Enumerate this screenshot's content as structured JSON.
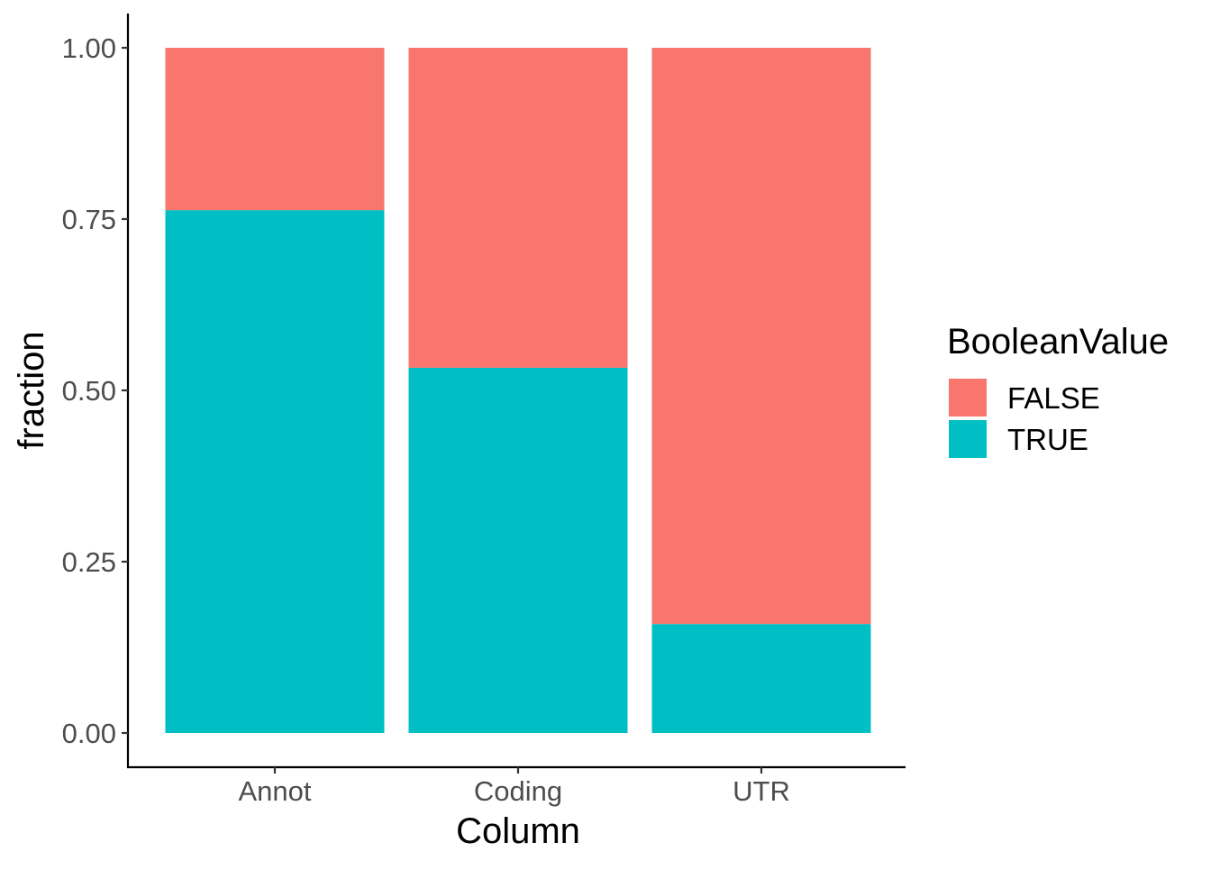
{
  "chart_data": {
    "type": "bar",
    "stacked": true,
    "title": "",
    "xlabel": "Column",
    "ylabel": "fraction",
    "categories": [
      "Annot",
      "Coding",
      "UTR"
    ],
    "ylim": [
      0,
      1
    ],
    "yticks": [
      0,
      0.25,
      0.5,
      0.75,
      1
    ],
    "ytick_labels": [
      "0.00",
      "0.25",
      "0.50",
      "0.75",
      "1.00"
    ],
    "series": [
      {
        "name": "TRUE",
        "color": "#00BFC4",
        "values": [
          0.763,
          0.533,
          0.159
        ]
      },
      {
        "name": "FALSE",
        "color": "#F8766D",
        "values": [
          0.237,
          0.467,
          0.841
        ]
      }
    ],
    "legend": {
      "title": "BooleanValue",
      "position": "right",
      "entries": [
        {
          "label": "FALSE",
          "color": "#F8766D"
        },
        {
          "label": "TRUE",
          "color": "#00BFC4"
        }
      ]
    },
    "grid": false
  }
}
